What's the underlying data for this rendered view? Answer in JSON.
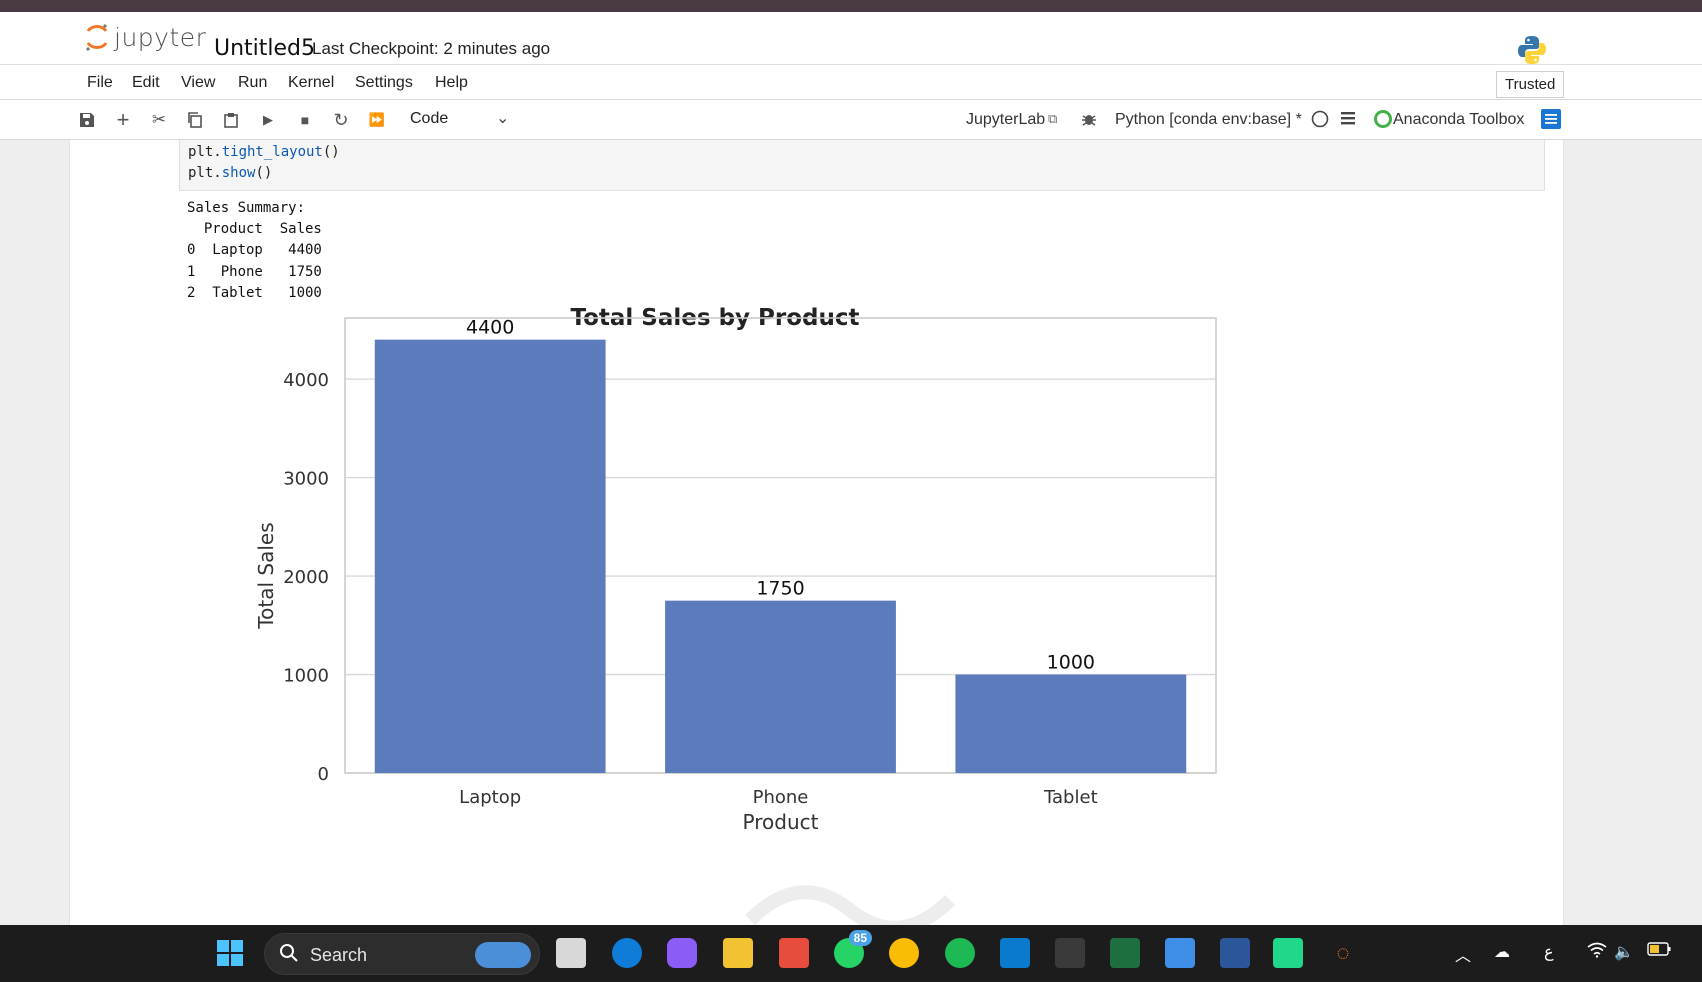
{
  "app": {
    "brand": "jupyter",
    "notebook_title": "Untitled5",
    "checkpoint": "Last Checkpoint: 2 minutes ago"
  },
  "menu": {
    "items": [
      "File",
      "Edit",
      "View",
      "Run",
      "Kernel",
      "Settings",
      "Help"
    ],
    "trusted": "Trusted"
  },
  "toolbar": {
    "cell_type": "Code",
    "jupyterlab_link": "JupyterLab",
    "kernel": "Python [conda env:base] *",
    "anaconda": "Anaconda Toolbox"
  },
  "code": {
    "line1_obj": "plt.",
    "line1_fn": "tight_layout",
    "line1_tail": "()",
    "line2_obj": "plt.",
    "line2_fn": "show",
    "line2_tail": "()"
  },
  "output": {
    "text": "Sales Summary:\n  Product  Sales\n0  Laptop   4400\n1   Phone   1750\n2  Tablet   1000"
  },
  "chart_data": {
    "type": "bar",
    "title": "Total Sales by Product",
    "xlabel": "Product",
    "ylabel": "Total Sales",
    "categories": [
      "Laptop",
      "Phone",
      "Tablet"
    ],
    "values": [
      4400,
      1750,
      1000
    ],
    "data_labels": [
      "4400",
      "1750",
      "1000"
    ],
    "yticks": [
      0,
      1000,
      2000,
      3000,
      4000
    ],
    "ylim": [
      0,
      4620
    ],
    "grid": "horizontal",
    "bar_color": "#5b7bbd"
  },
  "taskbar": {
    "search": "Search",
    "whatsapp_badge": "85",
    "tray_lang": "ع"
  },
  "colors": {
    "jupyter_orange": "#f37626",
    "link_blue": "#0d58b0",
    "taskbar_bg": "#1c1c1c"
  }
}
